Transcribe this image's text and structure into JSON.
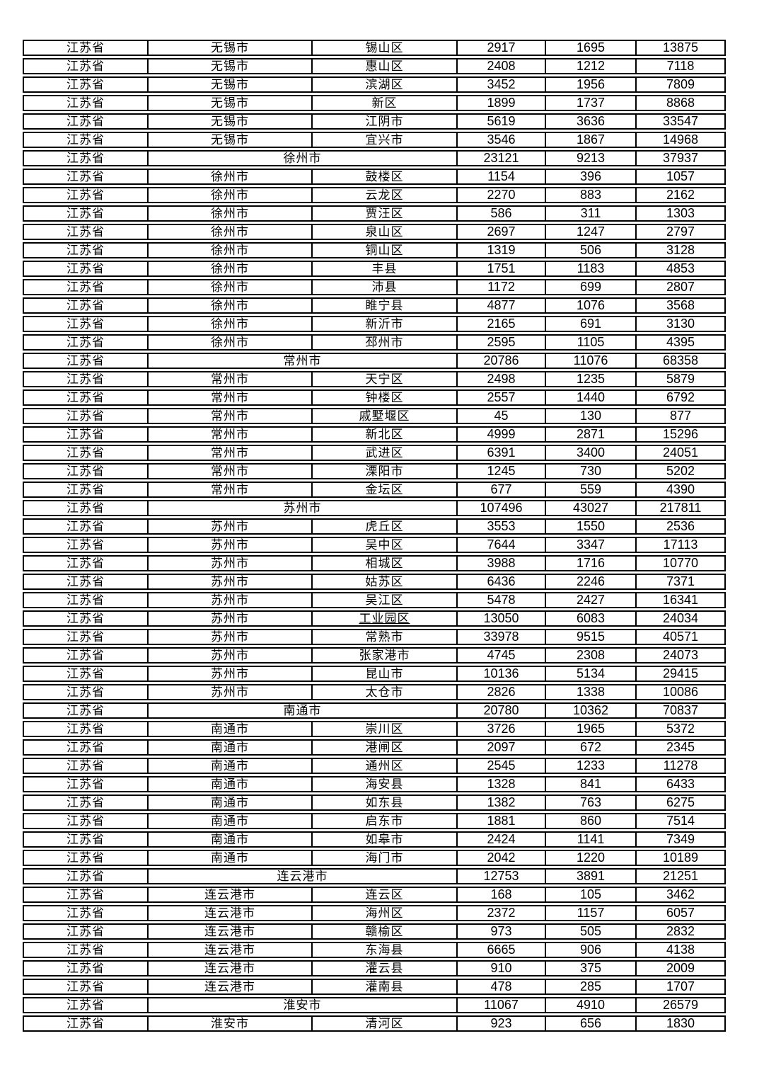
{
  "table": {
    "province_label": "江苏省",
    "rows": [
      {
        "province": "江苏省",
        "city": "无锡市",
        "district": "锡山区",
        "values": [
          "2917",
          "1695",
          "13875"
        ]
      },
      {
        "province": "江苏省",
        "city": "无锡市",
        "district": "惠山区",
        "values": [
          "2408",
          "1212",
          "7118"
        ]
      },
      {
        "province": "江苏省",
        "city": "无锡市",
        "district": "滨湖区",
        "values": [
          "3452",
          "1956",
          "7809"
        ]
      },
      {
        "province": "江苏省",
        "city": "无锡市",
        "district": "新区",
        "values": [
          "1899",
          "1737",
          "8868"
        ]
      },
      {
        "province": "江苏省",
        "city": "无锡市",
        "district": "江阴市",
        "values": [
          "5619",
          "3636",
          "33547"
        ]
      },
      {
        "province": "江苏省",
        "city": "无锡市",
        "district": "宜兴市",
        "values": [
          "3546",
          "1867",
          "14968"
        ]
      },
      {
        "province": "江苏省",
        "city": "徐州市",
        "district": null,
        "city_summary": true,
        "values": [
          "23121",
          "9213",
          "37937"
        ]
      },
      {
        "province": "江苏省",
        "city": "徐州市",
        "district": "鼓楼区",
        "values": [
          "1154",
          "396",
          "1057"
        ]
      },
      {
        "province": "江苏省",
        "city": "徐州市",
        "district": "云龙区",
        "values": [
          "2270",
          "883",
          "2162"
        ]
      },
      {
        "province": "江苏省",
        "city": "徐州市",
        "district": "贾汪区",
        "values": [
          "586",
          "311",
          "1303"
        ]
      },
      {
        "province": "江苏省",
        "city": "徐州市",
        "district": "泉山区",
        "values": [
          "2697",
          "1247",
          "2797"
        ]
      },
      {
        "province": "江苏省",
        "city": "徐州市",
        "district": "铜山区",
        "values": [
          "1319",
          "506",
          "3128"
        ]
      },
      {
        "province": "江苏省",
        "city": "徐州市",
        "district": "丰县",
        "values": [
          "1751",
          "1183",
          "4853"
        ]
      },
      {
        "province": "江苏省",
        "city": "徐州市",
        "district": "沛县",
        "values": [
          "1172",
          "699",
          "2807"
        ]
      },
      {
        "province": "江苏省",
        "city": "徐州市",
        "district": "睢宁县",
        "values": [
          "4877",
          "1076",
          "3568"
        ]
      },
      {
        "province": "江苏省",
        "city": "徐州市",
        "district": "新沂市",
        "values": [
          "2165",
          "691",
          "3130"
        ]
      },
      {
        "province": "江苏省",
        "city": "徐州市",
        "district": "邳州市",
        "values": [
          "2595",
          "1105",
          "4395"
        ]
      },
      {
        "province": "江苏省",
        "city": "常州市",
        "district": null,
        "city_summary": true,
        "values": [
          "20786",
          "11076",
          "68358"
        ]
      },
      {
        "province": "江苏省",
        "city": "常州市",
        "district": "天宁区",
        "values": [
          "2498",
          "1235",
          "5879"
        ]
      },
      {
        "province": "江苏省",
        "city": "常州市",
        "district": "钟楼区",
        "values": [
          "2557",
          "1440",
          "6792"
        ]
      },
      {
        "province": "江苏省",
        "city": "常州市",
        "district": "戚墅堰区",
        "values": [
          "45",
          "130",
          "877"
        ]
      },
      {
        "province": "江苏省",
        "city": "常州市",
        "district": "新北区",
        "values": [
          "4999",
          "2871",
          "15296"
        ]
      },
      {
        "province": "江苏省",
        "city": "常州市",
        "district": "武进区",
        "values": [
          "6391",
          "3400",
          "24051"
        ]
      },
      {
        "province": "江苏省",
        "city": "常州市",
        "district": "溧阳市",
        "values": [
          "1245",
          "730",
          "5202"
        ]
      },
      {
        "province": "江苏省",
        "city": "常州市",
        "district": "金坛区",
        "values": [
          "677",
          "559",
          "4390"
        ]
      },
      {
        "province": "江苏省",
        "city": "苏州市",
        "district": null,
        "city_summary": true,
        "values": [
          "107496",
          "43027",
          "217811"
        ]
      },
      {
        "province": "江苏省",
        "city": "苏州市",
        "district": "虎丘区",
        "values": [
          "3553",
          "1550",
          "2536"
        ]
      },
      {
        "province": "江苏省",
        "city": "苏州市",
        "district": "吴中区",
        "values": [
          "7644",
          "3347",
          "17113"
        ]
      },
      {
        "province": "江苏省",
        "city": "苏州市",
        "district": "相城区",
        "values": [
          "3988",
          "1716",
          "10770"
        ]
      },
      {
        "province": "江苏省",
        "city": "苏州市",
        "district": "姑苏区",
        "values": [
          "6436",
          "2246",
          "7371"
        ]
      },
      {
        "province": "江苏省",
        "city": "苏州市",
        "district": "吴江区",
        "values": [
          "5478",
          "2427",
          "16341"
        ]
      },
      {
        "province": "江苏省",
        "city": "苏州市",
        "district": "工业园区",
        "underline": true,
        "values": [
          "13050",
          "6083",
          "24034"
        ]
      },
      {
        "province": "江苏省",
        "city": "苏州市",
        "district": "常熟市",
        "values": [
          "33978",
          "9515",
          "40571"
        ]
      },
      {
        "province": "江苏省",
        "city": "苏州市",
        "district": "张家港市",
        "values": [
          "4745",
          "2308",
          "24073"
        ]
      },
      {
        "province": "江苏省",
        "city": "苏州市",
        "district": "昆山市",
        "values": [
          "10136",
          "5134",
          "29415"
        ]
      },
      {
        "province": "江苏省",
        "city": "苏州市",
        "district": "太仓市",
        "values": [
          "2826",
          "1338",
          "10086"
        ]
      },
      {
        "province": "江苏省",
        "city": "南通市",
        "district": null,
        "city_summary": true,
        "values": [
          "20780",
          "10362",
          "70837"
        ]
      },
      {
        "province": "江苏省",
        "city": "南通市",
        "district": "崇川区",
        "values": [
          "3726",
          "1965",
          "5372"
        ]
      },
      {
        "province": "江苏省",
        "city": "南通市",
        "district": "港闸区",
        "values": [
          "2097",
          "672",
          "2345"
        ]
      },
      {
        "province": "江苏省",
        "city": "南通市",
        "district": "通州区",
        "values": [
          "2545",
          "1233",
          "11278"
        ]
      },
      {
        "province": "江苏省",
        "city": "南通市",
        "district": "海安县",
        "values": [
          "1328",
          "841",
          "6433"
        ]
      },
      {
        "province": "江苏省",
        "city": "南通市",
        "district": "如东县",
        "values": [
          "1382",
          "763",
          "6275"
        ]
      },
      {
        "province": "江苏省",
        "city": "南通市",
        "district": "启东市",
        "values": [
          "1881",
          "860",
          "7514"
        ]
      },
      {
        "province": "江苏省",
        "city": "南通市",
        "district": "如皋市",
        "values": [
          "2424",
          "1141",
          "7349"
        ]
      },
      {
        "province": "江苏省",
        "city": "南通市",
        "district": "海门市",
        "values": [
          "2042",
          "1220",
          "10189"
        ]
      },
      {
        "province": "江苏省",
        "city": "连云港市",
        "district": null,
        "city_summary": true,
        "values": [
          "12753",
          "3891",
          "21251"
        ]
      },
      {
        "province": "江苏省",
        "city": "连云港市",
        "district": "连云区",
        "values": [
          "168",
          "105",
          "3462"
        ]
      },
      {
        "province": "江苏省",
        "city": "连云港市",
        "district": "海州区",
        "values": [
          "2372",
          "1157",
          "6057"
        ]
      },
      {
        "province": "江苏省",
        "city": "连云港市",
        "district": "赣榆区",
        "values": [
          "973",
          "505",
          "2832"
        ]
      },
      {
        "province": "江苏省",
        "city": "连云港市",
        "district": "东海县",
        "values": [
          "6665",
          "906",
          "4138"
        ]
      },
      {
        "province": "江苏省",
        "city": "连云港市",
        "district": "灌云县",
        "values": [
          "910",
          "375",
          "2009"
        ]
      },
      {
        "province": "江苏省",
        "city": "连云港市",
        "district": "灌南县",
        "values": [
          "478",
          "285",
          "1707"
        ]
      },
      {
        "province": "江苏省",
        "city": "淮安市",
        "district": null,
        "city_summary": true,
        "values": [
          "11067",
          "4910",
          "26579"
        ]
      },
      {
        "province": "江苏省",
        "city": "淮安市",
        "district": "清河区",
        "values": [
          "923",
          "656",
          "1830"
        ]
      }
    ]
  }
}
